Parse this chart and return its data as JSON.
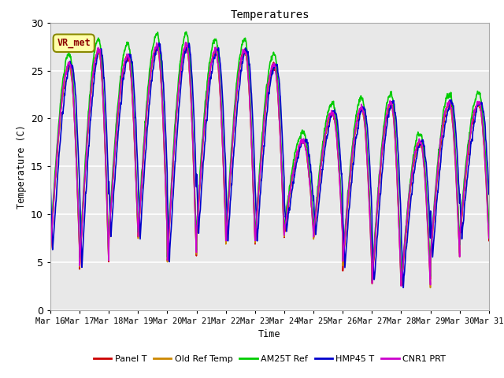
{
  "title": "Temperatures",
  "ylabel": "Temperature (C)",
  "xlabel": "Time",
  "annotation": "VR_met",
  "ylim": [
    0,
    30
  ],
  "background_color": "#e8e8e8",
  "grid_color": "white",
  "series_names": [
    "Panel T",
    "Old Ref Temp",
    "AM25T Ref",
    "HMP45 T",
    "CNR1 PRT"
  ],
  "series_colors": [
    "#cc0000",
    "#cc8800",
    "#00cc00",
    "#0000cc",
    "#cc00cc"
  ],
  "series_lw": [
    1.2,
    1.2,
    1.2,
    1.2,
    1.2
  ],
  "x_tick_labels": [
    "Mar 16",
    "Mar 17",
    "Mar 18",
    "Mar 19",
    "Mar 20",
    "Mar 21",
    "Mar 22",
    "Mar 23",
    "Mar 24",
    "Mar 25",
    "Mar 26",
    "Mar 27",
    "Mar 28",
    "Mar 29",
    "Mar 30",
    "Mar 31"
  ],
  "days": 15,
  "pts_per_day": 144
}
